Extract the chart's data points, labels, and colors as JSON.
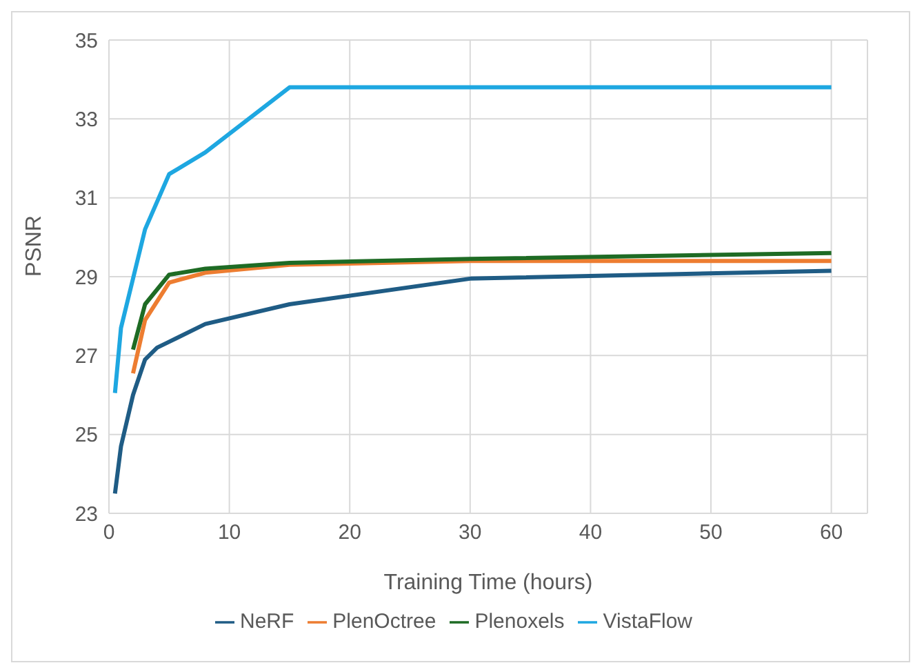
{
  "chart_data": {
    "type": "line",
    "xlabel": "Training Time (hours)",
    "ylabel": "PSNR",
    "xlim": [
      0,
      63
    ],
    "xticks": [
      0,
      10,
      20,
      30,
      40,
      50,
      60
    ],
    "ylim": [
      23,
      35
    ],
    "yticks": [
      23,
      25,
      27,
      29,
      31,
      33,
      35
    ],
    "grid": true,
    "legend": "bottom",
    "marker": "none",
    "series": [
      {
        "name": "NeRF",
        "color": "#1f5c85",
        "x": [
          0.5,
          1,
          2,
          3,
          4,
          5,
          8,
          15,
          30,
          60
        ],
        "values": [
          23.5,
          24.7,
          26.0,
          26.9,
          27.2,
          27.35,
          27.8,
          28.3,
          28.95,
          29.15
        ]
      },
      {
        "name": "PlenOctree",
        "color": "#ed7d31",
        "x": [
          2,
          3,
          5,
          8,
          15,
          30,
          60
        ],
        "values": [
          26.55,
          27.9,
          28.85,
          29.1,
          29.3,
          29.4,
          29.4
        ]
      },
      {
        "name": "Plenoxels",
        "color": "#1e6b24",
        "x": [
          2,
          3,
          5,
          8,
          15,
          30,
          60
        ],
        "values": [
          27.15,
          28.3,
          29.05,
          29.2,
          29.35,
          29.45,
          29.6
        ]
      },
      {
        "name": "VistaFlow",
        "color": "#1ea7e1",
        "x": [
          0.5,
          1,
          3,
          5,
          8,
          15,
          60
        ],
        "values": [
          26.05,
          27.7,
          30.2,
          31.6,
          32.15,
          33.8,
          33.8
        ]
      }
    ]
  }
}
